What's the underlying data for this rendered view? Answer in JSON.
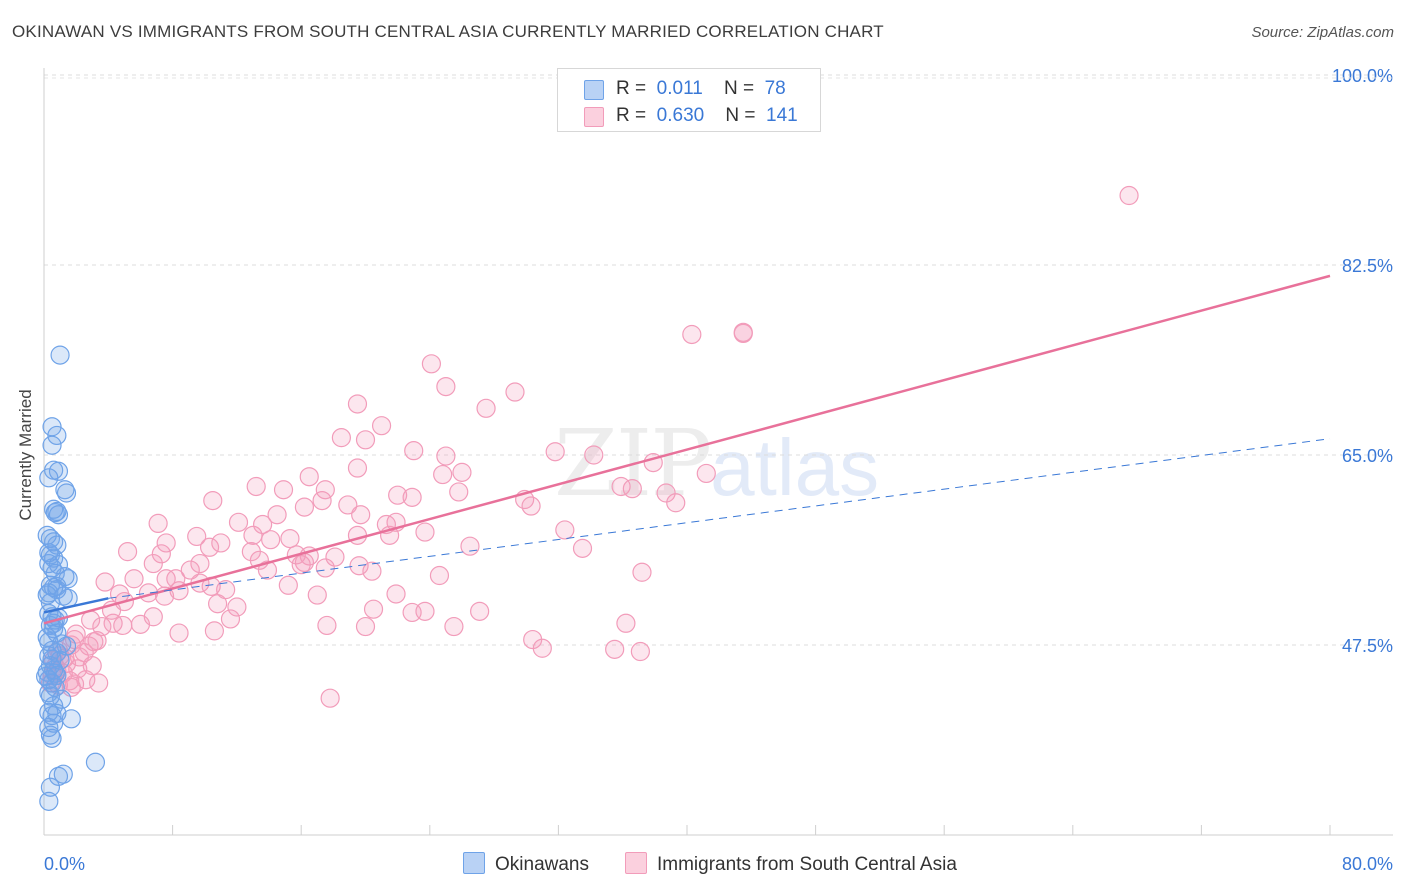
{
  "header": {
    "title": "OKINAWAN VS IMMIGRANTS FROM SOUTH CENTRAL ASIA CURRENTLY MARRIED CORRELATION CHART",
    "source": "Source: ZipAtlas.com"
  },
  "legend": {
    "blue": {
      "r_label": "R =",
      "r_value": "0.011",
      "n_label": "N =",
      "n_value": "78"
    },
    "pink": {
      "r_label": "R =",
      "r_value": "0.630",
      "n_label": "N =",
      "n_value": "141"
    }
  },
  "bottom_legend": {
    "blue": "Okinawans",
    "pink": "Immigrants from South Central Asia"
  },
  "watermark": {
    "part1": "ZIP",
    "part2": "atlas"
  },
  "colors": {
    "blue": "#6fa3e8",
    "blue_line": "#3a78d6",
    "pink": "#f29cba",
    "pink_line": "#e8719a",
    "axis_label": "#3a78d6"
  },
  "chart_data": {
    "type": "scatter",
    "title": "OKINAWAN VS IMMIGRANTS FROM SOUTH CENTRAL ASIA CURRENTLY MARRIED CORRELATION CHART",
    "xlabel": "",
    "ylabel": "Currently Married",
    "xlim": [
      0,
      80
    ],
    "ylim": [
      30,
      100
    ],
    "x_tick_labels": [
      "0.0%",
      "80.0%"
    ],
    "y_ticks": [
      47.5,
      65.0,
      82.5,
      100.0
    ],
    "y_tick_labels": [
      "47.5%",
      "65.0%",
      "82.5%",
      "100.0%"
    ],
    "grid": "horizontal-dashed",
    "legend_position": "top-center",
    "series": [
      {
        "name": "Okinawans",
        "color": "#6fa3e8",
        "R": 0.011,
        "N": 78,
        "trend": {
          "x": [
            0,
            4
          ],
          "y": [
            50.5,
            51.8
          ],
          "dashed_to": [
            80,
            66.5
          ]
        },
        "points": [
          [
            1.0,
            74.2
          ],
          [
            0.5,
            67.6
          ],
          [
            0.8,
            66.8
          ],
          [
            0.5,
            65.9
          ],
          [
            0.6,
            63.6
          ],
          [
            0.9,
            63.5
          ],
          [
            0.3,
            62.9
          ],
          [
            1.3,
            61.8
          ],
          [
            1.4,
            61.5
          ],
          [
            0.6,
            60.0
          ],
          [
            0.7,
            59.7
          ],
          [
            0.8,
            59.8
          ],
          [
            0.9,
            59.5
          ],
          [
            0.4,
            57.3
          ],
          [
            0.6,
            57.0
          ],
          [
            0.8,
            56.7
          ],
          [
            0.3,
            56.0
          ],
          [
            0.6,
            55.5
          ],
          [
            0.3,
            55.0
          ],
          [
            0.5,
            54.6
          ],
          [
            0.7,
            54.1
          ],
          [
            1.3,
            53.8
          ],
          [
            1.5,
            53.6
          ],
          [
            0.4,
            53.0
          ],
          [
            0.6,
            52.8
          ],
          [
            0.8,
            52.6
          ],
          [
            0.3,
            52.3
          ],
          [
            1.2,
            52.0
          ],
          [
            1.5,
            51.8
          ],
          [
            0.3,
            50.4
          ],
          [
            0.5,
            50.1
          ],
          [
            0.7,
            49.8
          ],
          [
            0.4,
            49.3
          ],
          [
            0.6,
            49.0
          ],
          [
            0.8,
            48.6
          ],
          [
            0.3,
            47.8
          ],
          [
            1.1,
            47.6
          ],
          [
            1.4,
            47.4
          ],
          [
            0.5,
            47.0
          ],
          [
            0.8,
            46.8
          ],
          [
            0.3,
            46.5
          ],
          [
            1.0,
            46.1
          ],
          [
            0.4,
            45.6
          ],
          [
            0.6,
            45.2
          ],
          [
            0.8,
            44.7
          ],
          [
            0.3,
            44.3
          ],
          [
            0.5,
            44.0
          ],
          [
            0.7,
            43.6
          ],
          [
            0.4,
            42.8
          ],
          [
            0.6,
            41.9
          ],
          [
            0.3,
            41.3
          ],
          [
            0.5,
            41.0
          ],
          [
            0.8,
            41.2
          ],
          [
            1.7,
            40.7
          ],
          [
            0.6,
            40.3
          ],
          [
            0.3,
            39.9
          ],
          [
            0.4,
            39.2
          ],
          [
            0.5,
            38.9
          ],
          [
            3.2,
            36.7
          ],
          [
            1.2,
            35.6
          ],
          [
            0.9,
            35.4
          ],
          [
            0.4,
            34.4
          ],
          [
            0.3,
            33.1
          ],
          [
            0.8,
            52.9
          ],
          [
            0.4,
            51.4
          ],
          [
            0.9,
            50.0
          ],
          [
            0.2,
            48.2
          ],
          [
            0.5,
            46.2
          ],
          [
            0.2,
            45.0
          ],
          [
            0.7,
            44.9
          ],
          [
            0.3,
            43.1
          ],
          [
            1.1,
            42.5
          ],
          [
            0.2,
            57.6
          ],
          [
            0.4,
            55.8
          ],
          [
            0.9,
            54.9
          ],
          [
            0.2,
            52.1
          ],
          [
            0.6,
            49.5
          ],
          [
            0.1,
            44.6
          ]
        ]
      },
      {
        "name": "Immigrants from South Central Asia",
        "color": "#f29cba",
        "R": 0.63,
        "N": 141,
        "trend": {
          "x": [
            0,
            80
          ],
          "y": [
            49.5,
            81.5
          ]
        },
        "points": [
          [
            67.5,
            88.9
          ],
          [
            43.5,
            76.3
          ],
          [
            43.5,
            76.2
          ],
          [
            40.3,
            76.1
          ],
          [
            24.1,
            73.4
          ],
          [
            25.0,
            71.3
          ],
          [
            29.3,
            70.8
          ],
          [
            27.5,
            69.3
          ],
          [
            19.5,
            69.7
          ],
          [
            21.0,
            67.7
          ],
          [
            18.5,
            66.6
          ],
          [
            20.0,
            66.4
          ],
          [
            23.0,
            65.4
          ],
          [
            31.8,
            65.3
          ],
          [
            34.2,
            65.0
          ],
          [
            25.0,
            64.9
          ],
          [
            37.9,
            64.3
          ],
          [
            26.0,
            63.4
          ],
          [
            19.5,
            63.8
          ],
          [
            16.5,
            63.0
          ],
          [
            24.8,
            63.2
          ],
          [
            41.2,
            63.3
          ],
          [
            13.2,
            62.1
          ],
          [
            14.9,
            61.8
          ],
          [
            17.5,
            61.8
          ],
          [
            35.9,
            62.1
          ],
          [
            36.6,
            61.9
          ],
          [
            38.7,
            61.5
          ],
          [
            25.8,
            61.6
          ],
          [
            22.0,
            61.3
          ],
          [
            22.9,
            61.1
          ],
          [
            29.9,
            60.9
          ],
          [
            17.3,
            60.8
          ],
          [
            10.5,
            60.8
          ],
          [
            18.9,
            60.4
          ],
          [
            16.2,
            60.2
          ],
          [
            30.3,
            60.3
          ],
          [
            39.3,
            60.6
          ],
          [
            14.5,
            59.5
          ],
          [
            19.7,
            59.5
          ],
          [
            12.1,
            58.8
          ],
          [
            13.6,
            58.6
          ],
          [
            21.3,
            58.6
          ],
          [
            21.9,
            58.8
          ],
          [
            7.1,
            58.7
          ],
          [
            32.4,
            58.1
          ],
          [
            23.7,
            57.9
          ],
          [
            19.5,
            57.6
          ],
          [
            21.5,
            57.6
          ],
          [
            13.0,
            57.6
          ],
          [
            9.5,
            57.5
          ],
          [
            15.3,
            57.3
          ],
          [
            14.1,
            57.2
          ],
          [
            7.6,
            56.9
          ],
          [
            11.0,
            56.9
          ],
          [
            10.3,
            56.5
          ],
          [
            26.5,
            56.6
          ],
          [
            33.5,
            56.4
          ],
          [
            5.2,
            56.1
          ],
          [
            7.3,
            55.9
          ],
          [
            12.9,
            56.1
          ],
          [
            15.7,
            55.8
          ],
          [
            16.5,
            55.7
          ],
          [
            13.4,
            55.3
          ],
          [
            16.2,
            55.1
          ],
          [
            18.1,
            55.6
          ],
          [
            6.8,
            55.0
          ],
          [
            9.7,
            55.0
          ],
          [
            16.0,
            54.9
          ],
          [
            19.6,
            54.8
          ],
          [
            17.5,
            54.6
          ],
          [
            9.1,
            54.4
          ],
          [
            13.9,
            54.4
          ],
          [
            20.4,
            54.3
          ],
          [
            37.2,
            54.2
          ],
          [
            24.6,
            53.9
          ],
          [
            5.6,
            53.6
          ],
          [
            7.6,
            53.6
          ],
          [
            8.2,
            53.6
          ],
          [
            3.8,
            53.3
          ],
          [
            9.7,
            53.2
          ],
          [
            15.2,
            53.0
          ],
          [
            10.4,
            52.9
          ],
          [
            11.3,
            52.6
          ],
          [
            8.4,
            52.5
          ],
          [
            6.5,
            52.3
          ],
          [
            7.5,
            52.0
          ],
          [
            4.7,
            52.2
          ],
          [
            17.0,
            52.1
          ],
          [
            21.9,
            52.2
          ],
          [
            5.0,
            51.5
          ],
          [
            10.8,
            51.3
          ],
          [
            12.0,
            51.0
          ],
          [
            20.5,
            50.8
          ],
          [
            22.9,
            50.5
          ],
          [
            23.7,
            50.6
          ],
          [
            27.1,
            50.6
          ],
          [
            6.8,
            50.1
          ],
          [
            11.6,
            49.9
          ],
          [
            2.9,
            49.8
          ],
          [
            4.3,
            49.5
          ],
          [
            17.6,
            49.3
          ],
          [
            20.0,
            49.2
          ],
          [
            25.5,
            49.2
          ],
          [
            36.2,
            49.5
          ],
          [
            3.6,
            49.2
          ],
          [
            4.9,
            49.3
          ],
          [
            10.6,
            48.8
          ],
          [
            8.4,
            48.6
          ],
          [
            30.4,
            48.0
          ],
          [
            3.3,
            47.9
          ],
          [
            1.9,
            48.0
          ],
          [
            2.8,
            47.4
          ],
          [
            1.7,
            47.5
          ],
          [
            31.0,
            47.2
          ],
          [
            35.5,
            47.1
          ],
          [
            37.1,
            46.9
          ],
          [
            2.2,
            46.4
          ],
          [
            0.6,
            46.1
          ],
          [
            1.4,
            45.8
          ],
          [
            2.1,
            45.3
          ],
          [
            0.8,
            45.1
          ],
          [
            1.2,
            44.9
          ],
          [
            0.5,
            44.7
          ],
          [
            1.6,
            44.2
          ],
          [
            3.4,
            44.0
          ],
          [
            0.9,
            43.8
          ],
          [
            1.7,
            43.6
          ],
          [
            17.8,
            42.6
          ],
          [
            3.0,
            45.6
          ],
          [
            2.6,
            44.3
          ],
          [
            1.0,
            46.5
          ],
          [
            0.4,
            44.0
          ],
          [
            1.9,
            43.9
          ],
          [
            2.5,
            46.8
          ],
          [
            4.2,
            50.7
          ],
          [
            6.0,
            49.4
          ],
          [
            3.1,
            47.8
          ],
          [
            0.7,
            45.5
          ],
          [
            1.3,
            46.3
          ],
          [
            2.0,
            48.5
          ],
          [
            0.9,
            47.0
          ]
        ]
      }
    ]
  }
}
